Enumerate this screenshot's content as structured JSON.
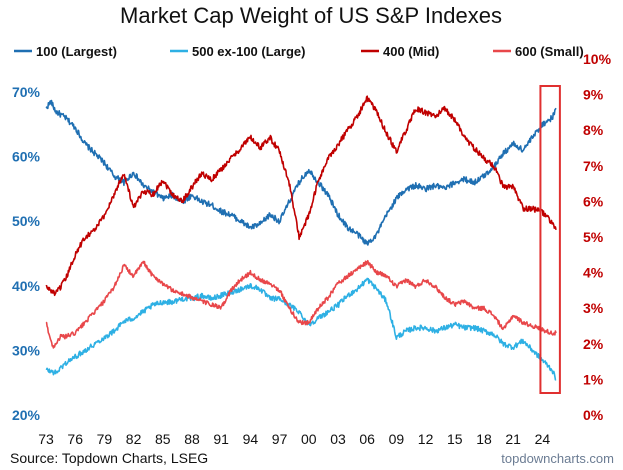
{
  "chart_data": {
    "type": "line",
    "title": "Market Cap Weight of US S&P Indexes",
    "x_tick_labels": [
      "73",
      "76",
      "79",
      "82",
      "85",
      "88",
      "91",
      "94",
      "97",
      "00",
      "03",
      "06",
      "09",
      "12",
      "15",
      "18",
      "21",
      "24"
    ],
    "x_tick_years": [
      1973,
      1976,
      1979,
      1982,
      1985,
      1988,
      1991,
      1994,
      1997,
      2000,
      2003,
      2006,
      2009,
      2012,
      2015,
      2018,
      2021,
      2024
    ],
    "x_range": [
      1973,
      2025.4
    ],
    "left_axis": {
      "ticks": [
        "20%",
        "30%",
        "40%",
        "50%",
        "60%",
        "70%"
      ],
      "tick_values": [
        20,
        30,
        40,
        50,
        60,
        70
      ],
      "range": [
        20,
        70
      ],
      "color": "#1f6fb2"
    },
    "right_axis": {
      "ticks": [
        "0%",
        "1%",
        "2%",
        "3%",
        "4%",
        "5%",
        "6%",
        "7%",
        "8%",
        "9%",
        "10%"
      ],
      "tick_values": [
        0,
        1,
        2,
        3,
        4,
        5,
        6,
        7,
        8,
        9,
        10
      ],
      "range": [
        0,
        10
      ],
      "color": "#c00000"
    },
    "series": [
      {
        "name": "100 (Largest)",
        "axis": "left",
        "color": "#1f6fb2",
        "points": [
          [
            1973,
            67.5
          ],
          [
            1973.5,
            68.5
          ],
          [
            1974,
            67
          ],
          [
            1975,
            66
          ],
          [
            1976,
            64.5
          ],
          [
            1977,
            62
          ],
          [
            1978,
            60.5
          ],
          [
            1979,
            59
          ],
          [
            1980,
            57
          ],
          [
            1981,
            56
          ],
          [
            1982,
            57.5
          ],
          [
            1983,
            55.5
          ],
          [
            1984,
            54.5
          ],
          [
            1985,
            53.5
          ],
          [
            1986,
            54
          ],
          [
            1987,
            53
          ],
          [
            1988,
            54
          ],
          [
            1989,
            53
          ],
          [
            1990,
            52.5
          ],
          [
            1991,
            51.5
          ],
          [
            1992,
            51
          ],
          [
            1993,
            50
          ],
          [
            1994,
            49
          ],
          [
            1995,
            49.5
          ],
          [
            1996,
            51
          ],
          [
            1997,
            50
          ],
          [
            1998,
            53
          ],
          [
            1999,
            56
          ],
          [
            2000,
            58
          ],
          [
            2001,
            56
          ],
          [
            2002,
            54
          ],
          [
            2003,
            51
          ],
          [
            2004,
            49
          ],
          [
            2005,
            48
          ],
          [
            2006,
            46.5
          ],
          [
            2007,
            48
          ],
          [
            2008,
            51
          ],
          [
            2009,
            53.5
          ],
          [
            2010,
            55
          ],
          [
            2011,
            55.5
          ],
          [
            2012,
            55
          ],
          [
            2013,
            55.5
          ],
          [
            2014,
            55
          ],
          [
            2015,
            56
          ],
          [
            2016,
            56.5
          ],
          [
            2017,
            56
          ],
          [
            2018,
            57
          ],
          [
            2019,
            58.5
          ],
          [
            2020,
            60.5
          ],
          [
            2021,
            62
          ],
          [
            2022,
            61
          ],
          [
            2023,
            63
          ],
          [
            2024,
            65
          ],
          [
            2025,
            66
          ],
          [
            2025.4,
            67.5
          ]
        ]
      },
      {
        "name": "500 ex-100 (Large)",
        "axis": "left",
        "color": "#2eb0e4",
        "points": [
          [
            1973,
            27
          ],
          [
            1974,
            26.5
          ],
          [
            1975,
            28
          ],
          [
            1976,
            29
          ],
          [
            1977,
            30
          ],
          [
            1978,
            31
          ],
          [
            1979,
            32
          ],
          [
            1980,
            33
          ],
          [
            1981,
            34.5
          ],
          [
            1982,
            35
          ],
          [
            1983,
            36
          ],
          [
            1984,
            37
          ],
          [
            1985,
            37.5
          ],
          [
            1986,
            37.5
          ],
          [
            1987,
            38
          ],
          [
            1988,
            38
          ],
          [
            1989,
            38.5
          ],
          [
            1990,
            38
          ],
          [
            1991,
            38.5
          ],
          [
            1992,
            39
          ],
          [
            1993,
            39.5
          ],
          [
            1994,
            40
          ],
          [
            1995,
            39.5
          ],
          [
            1996,
            38
          ],
          [
            1997,
            38
          ],
          [
            1998,
            37
          ],
          [
            1999,
            36
          ],
          [
            2000,
            34
          ],
          [
            2001,
            35
          ],
          [
            2002,
            36
          ],
          [
            2003,
            37
          ],
          [
            2004,
            38.5
          ],
          [
            2005,
            39.5
          ],
          [
            2006,
            41
          ],
          [
            2007,
            39.5
          ],
          [
            2008,
            37.5
          ],
          [
            2009,
            32
          ],
          [
            2010,
            33
          ],
          [
            2011,
            33.5
          ],
          [
            2012,
            33.5
          ],
          [
            2013,
            33
          ],
          [
            2014,
            33.5
          ],
          [
            2015,
            34
          ],
          [
            2016,
            33.5
          ],
          [
            2017,
            33.5
          ],
          [
            2018,
            33
          ],
          [
            2019,
            32.5
          ],
          [
            2020,
            31
          ],
          [
            2021,
            30.5
          ],
          [
            2022,
            31.5
          ],
          [
            2023,
            30
          ],
          [
            2024,
            28.5
          ],
          [
            2025,
            27
          ],
          [
            2025.4,
            25.5
          ]
        ]
      },
      {
        "name": "400 (Mid)",
        "axis": "right",
        "color": "#c00000",
        "points": [
          [
            1973,
            3.6
          ],
          [
            1974,
            3.4
          ],
          [
            1975,
            3.8
          ],
          [
            1976,
            4.5
          ],
          [
            1977,
            5.0
          ],
          [
            1978,
            5.2
          ],
          [
            1979,
            5.6
          ],
          [
            1980,
            6.2
          ],
          [
            1981,
            6.8
          ],
          [
            1982,
            5.8
          ],
          [
            1983,
            6.3
          ],
          [
            1984,
            6.2
          ],
          [
            1985,
            6.6
          ],
          [
            1986,
            6.2
          ],
          [
            1987,
            6.0
          ],
          [
            1988,
            6.4
          ],
          [
            1989,
            6.8
          ],
          [
            1990,
            6.6
          ],
          [
            1991,
            6.9
          ],
          [
            1992,
            7.2
          ],
          [
            1993,
            7.5
          ],
          [
            1994,
            7.8
          ],
          [
            1995,
            7.5
          ],
          [
            1996,
            7.8
          ],
          [
            1997,
            7.4
          ],
          [
            1998,
            6.5
          ],
          [
            1999,
            5.0
          ],
          [
            2000,
            5.6
          ],
          [
            2001,
            6.6
          ],
          [
            2002,
            7.2
          ],
          [
            2003,
            7.6
          ],
          [
            2004,
            8.0
          ],
          [
            2005,
            8.4
          ],
          [
            2006,
            8.9
          ],
          [
            2007,
            8.5
          ],
          [
            2008,
            7.9
          ],
          [
            2009,
            7.4
          ],
          [
            2010,
            8.0
          ],
          [
            2011,
            8.6
          ],
          [
            2012,
            8.5
          ],
          [
            2013,
            8.4
          ],
          [
            2014,
            8.6
          ],
          [
            2015,
            8.3
          ],
          [
            2016,
            7.8
          ],
          [
            2017,
            7.5
          ],
          [
            2018,
            7.2
          ],
          [
            2019,
            7.0
          ],
          [
            2020,
            6.4
          ],
          [
            2021,
            6.4
          ],
          [
            2022,
            5.8
          ],
          [
            2023,
            5.8
          ],
          [
            2024,
            5.7
          ],
          [
            2025,
            5.4
          ],
          [
            2025.4,
            5.2
          ]
        ]
      },
      {
        "name": "600 (Small)",
        "axis": "right",
        "color": "#e8474a",
        "points": [
          [
            1973,
            2.6
          ],
          [
            1973.7,
            1.9
          ],
          [
            1974.5,
            2.2
          ],
          [
            1975,
            2.2
          ],
          [
            1976,
            2.3
          ],
          [
            1977,
            2.6
          ],
          [
            1978,
            2.9
          ],
          [
            1979,
            3.2
          ],
          [
            1980,
            3.6
          ],
          [
            1981,
            4.2
          ],
          [
            1982,
            3.9
          ],
          [
            1983,
            4.3
          ],
          [
            1984,
            3.9
          ],
          [
            1985,
            3.7
          ],
          [
            1986,
            3.5
          ],
          [
            1987,
            3.4
          ],
          [
            1988,
            3.3
          ],
          [
            1989,
            3.2
          ],
          [
            1990,
            3.1
          ],
          [
            1991,
            3.0
          ],
          [
            1992,
            3.5
          ],
          [
            1993,
            3.8
          ],
          [
            1994,
            4.0
          ],
          [
            1995,
            3.8
          ],
          [
            1996,
            3.7
          ],
          [
            1997,
            3.5
          ],
          [
            1998,
            3.0
          ],
          [
            1999,
            2.6
          ],
          [
            2000,
            2.6
          ],
          [
            2001,
            3.0
          ],
          [
            2002,
            3.3
          ],
          [
            2003,
            3.7
          ],
          [
            2004,
            3.9
          ],
          [
            2005,
            4.1
          ],
          [
            2006,
            4.3
          ],
          [
            2007,
            4.0
          ],
          [
            2008,
            3.9
          ],
          [
            2009,
            3.6
          ],
          [
            2010,
            3.8
          ],
          [
            2011,
            3.6
          ],
          [
            2012,
            3.8
          ],
          [
            2013,
            3.6
          ],
          [
            2014,
            3.3
          ],
          [
            2015,
            3.1
          ],
          [
            2016,
            3.2
          ],
          [
            2017,
            3.0
          ],
          [
            2018,
            3.0
          ],
          [
            2019,
            2.8
          ],
          [
            2020,
            2.4
          ],
          [
            2021,
            2.8
          ],
          [
            2022,
            2.6
          ],
          [
            2023,
            2.5
          ],
          [
            2024,
            2.4
          ],
          [
            2025,
            2.3
          ],
          [
            2025.4,
            2.3
          ]
        ]
      }
    ],
    "highlight": {
      "x_range": [
        2023.8,
        2025.8
      ],
      "color": "#e03030"
    },
    "source": "Source: Topdown Charts, LSEG",
    "watermark": "topdowncharts.com"
  }
}
